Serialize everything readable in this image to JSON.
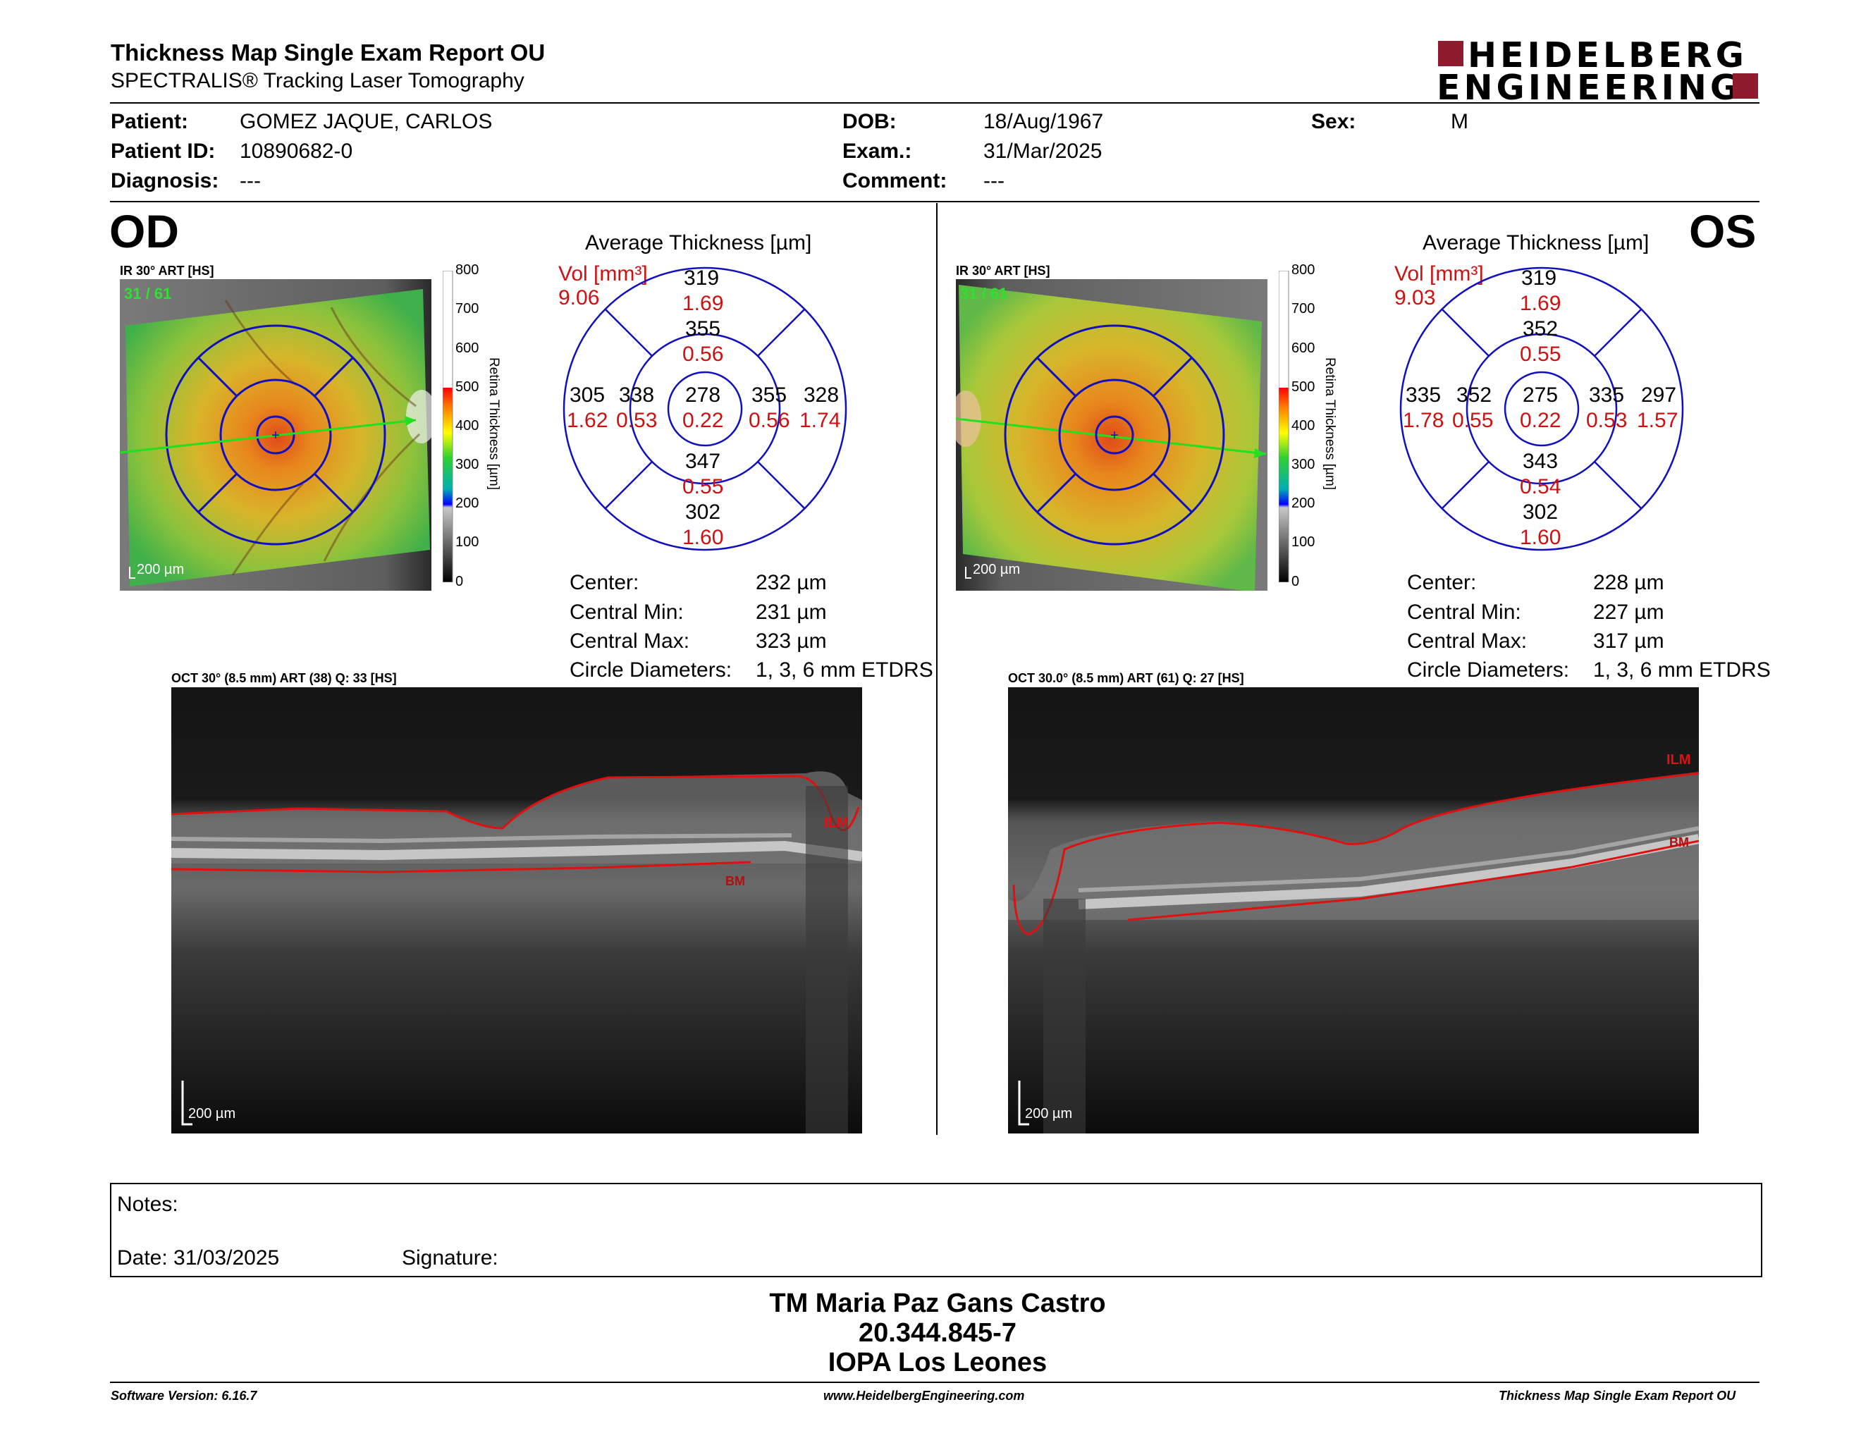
{
  "header": {
    "title": "Thickness Map Single Exam Report OU",
    "subtitle": "SPECTRALIS® Tracking Laser Tomography",
    "logo_line1": "HEIDELBERG",
    "logo_line2": "ENGINEERING",
    "brand_color": "#8e1b2e"
  },
  "patient": {
    "patient_label": "Patient:",
    "patient_value": "GOMEZ JAQUE, CARLOS",
    "id_label": "Patient ID:",
    "id_value": "10890682-0",
    "diagnosis_label": "Diagnosis:",
    "diagnosis_value": "---",
    "dob_label": "DOB:",
    "dob_value": "18/Aug/1967",
    "exam_label": "Exam.:",
    "exam_value": "31/Mar/2025",
    "comment_label": "Comment:",
    "comment_value": "---",
    "sex_label": "Sex:",
    "sex_value": "M"
  },
  "scale": {
    "ticks": [
      "800",
      "700",
      "600",
      "500",
      "400",
      "300",
      "200",
      "100",
      "0"
    ],
    "label": "Retina  Thickness [µm]"
  },
  "od": {
    "eye": "OD",
    "ir_label": "IR 30° ART [HS]",
    "frames": "31 / 61",
    "scalebar": "200 µm",
    "grid_title": "Average Thickness [µm]",
    "vol_label": "Vol [mm³]",
    "vol_value": "9.06",
    "sectors": {
      "center": {
        "thickness": "278",
        "vol": "0.22"
      },
      "inner_superior": {
        "thickness": "355",
        "vol": "0.56"
      },
      "inner_inferior": {
        "thickness": "347",
        "vol": "0.55"
      },
      "inner_temporal": {
        "thickness": "338",
        "vol": "0.53"
      },
      "inner_nasal": {
        "thickness": "355",
        "vol": "0.56"
      },
      "outer_superior": {
        "thickness": "319",
        "vol": "1.69"
      },
      "outer_inferior": {
        "thickness": "302",
        "vol": "1.60"
      },
      "outer_temporal": {
        "thickness": "305",
        "vol": "1.62"
      },
      "outer_nasal": {
        "thickness": "328",
        "vol": "1.74"
      }
    },
    "stats": {
      "center_label": "Center:",
      "center_value": "232 µm",
      "cmin_label": "Central Min:",
      "cmin_value": "231 µm",
      "cmax_label": "Central Max:",
      "cmax_value": "323 µm",
      "diam_label": "Circle Diameters:",
      "diam_value": "1, 3, 6 mm ETDRS"
    },
    "oct_label": "OCT 30° (8.5 mm) ART (38) Q: 33 [HS]",
    "ilm": "ILM",
    "bm": "BM",
    "oct_scalebar": "200 µm"
  },
  "os": {
    "eye": "OS",
    "ir_label": "IR 30° ART [HS]",
    "frames": "31 / 61",
    "scalebar": "200 µm",
    "grid_title": "Average Thickness [µm]",
    "vol_label": "Vol [mm³]",
    "vol_value": "9.03",
    "sectors": {
      "center": {
        "thickness": "275",
        "vol": "0.22"
      },
      "inner_superior": {
        "thickness": "352",
        "vol": "0.55"
      },
      "inner_inferior": {
        "thickness": "343",
        "vol": "0.54"
      },
      "inner_temporal": {
        "thickness": "335",
        "vol": "0.53"
      },
      "inner_nasal": {
        "thickness": "352",
        "vol": "0.55"
      },
      "outer_superior": {
        "thickness": "319",
        "vol": "1.69"
      },
      "outer_inferior": {
        "thickness": "302",
        "vol": "1.60"
      },
      "outer_temporal": {
        "thickness": "297",
        "vol": "1.57"
      },
      "outer_nasal": {
        "thickness": "335",
        "vol": "1.78"
      }
    },
    "stats": {
      "center_label": "Center:",
      "center_value": "228 µm",
      "cmin_label": "Central Min:",
      "cmin_value": "227 µm",
      "cmax_label": "Central Max:",
      "cmax_value": "317 µm",
      "diam_label": "Circle Diameters:",
      "diam_value": "1, 3, 6 mm ETDRS"
    },
    "oct_label": "OCT 30.0° (8.5 mm) ART (61) Q: 27 [HS]",
    "ilm": "ILM",
    "bm": "BM",
    "oct_scalebar": "200 µm"
  },
  "notes": {
    "notes_label": "Notes:",
    "date_label": "Date: 31/03/2025",
    "signature_label": "Signature:"
  },
  "signatory": {
    "name": "TM Maria Paz Gans Castro",
    "rut": "20.344.845-7",
    "institution": "IOPA Los Leones"
  },
  "footer": {
    "software": "Software Version: 6.16.7",
    "website": "www.HeidelbergEngineering.com",
    "report": "Thickness Map Single Exam Report OU"
  }
}
